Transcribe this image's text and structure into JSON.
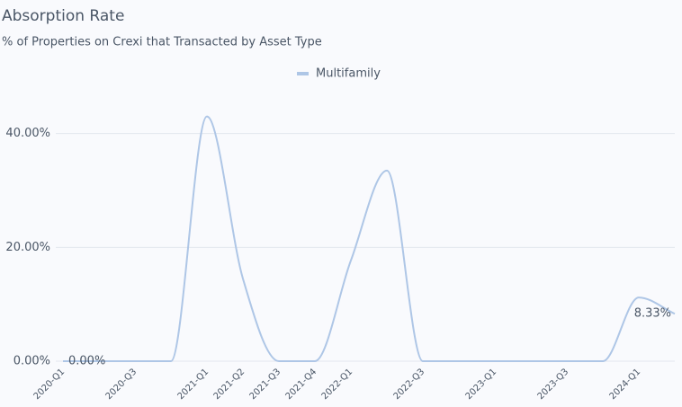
{
  "chart_data": {
    "type": "line",
    "title": "Absorption Rate",
    "subtitle": "% of Properties on Crexi that Transacted by Asset Type",
    "categories": [
      "2020-Q1",
      null,
      "2020-Q3",
      null,
      "2021-Q1",
      "2021-Q2",
      "2021-Q3",
      "2021-Q4",
      "2022-Q1",
      null,
      "2022-Q3",
      null,
      "2023-Q1",
      null,
      "2023-Q3",
      null,
      "2024-Q1",
      null
    ],
    "series": [
      {
        "name": "Multifamily",
        "color": "#aec6e6",
        "values": [
          0,
          0,
          0,
          0,
          43,
          14.5,
          0,
          0,
          17.7,
          33.5,
          0,
          0,
          0,
          0,
          0,
          0,
          11.2,
          8.33
        ],
        "value_labels": [
          "0.00%",
          null,
          null,
          null,
          null,
          null,
          null,
          null,
          null,
          null,
          null,
          null,
          null,
          null,
          null,
          null,
          null,
          "8.33%"
        ]
      }
    ],
    "ylim": [
      0,
      48
    ],
    "yticks": [
      {
        "value": 0,
        "label": "0.00%"
      },
      {
        "value": 20,
        "label": "20.00%"
      },
      {
        "value": 40,
        "label": "40.00%"
      }
    ],
    "grid": true,
    "legend": "top"
  }
}
